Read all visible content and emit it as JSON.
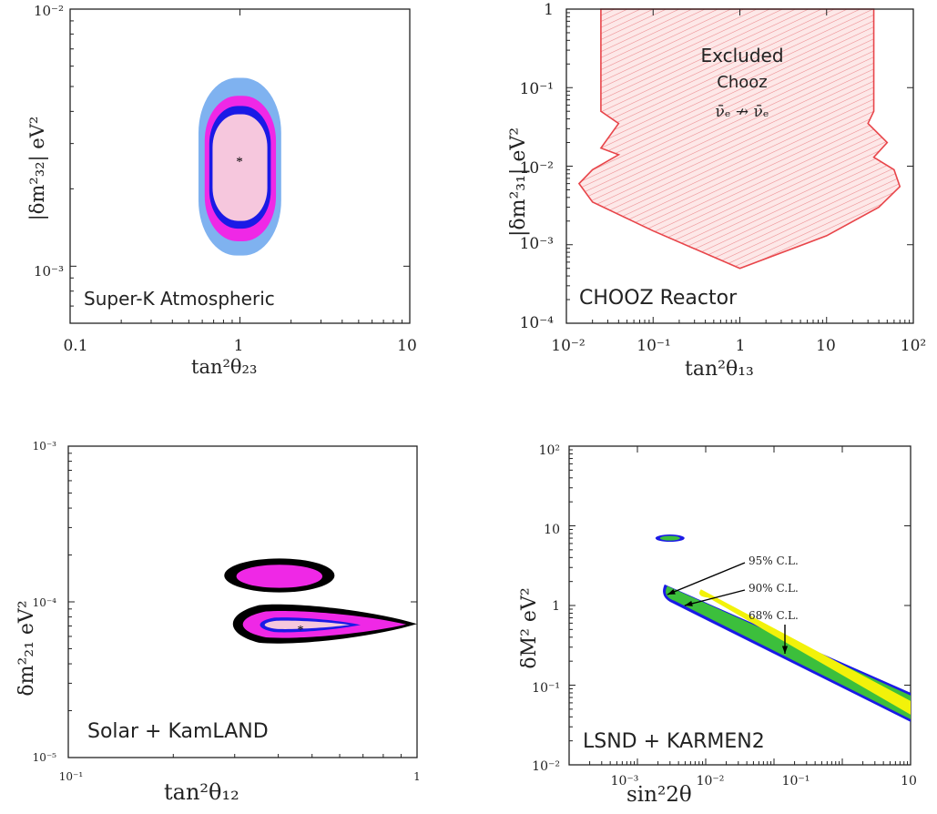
{
  "chart_data": [
    {
      "type": "contour",
      "panel_label": "Super-K Atmospheric",
      "x_scale": "log",
      "y_scale": "log",
      "xlim": [
        0.1,
        10
      ],
      "ylim": [
        0.0006,
        0.01
      ],
      "x_ticks": [
        "0.1",
        "1",
        "10"
      ],
      "y_ticks": [
        "10⁻³",
        "10⁻²"
      ],
      "xlabel": "tan²θ₂₃",
      "ylabel": "|δm²₃₂| eV²",
      "best_fit": {
        "x": 1.0,
        "y": 0.0025
      },
      "regions": [
        {
          "color": "#7fb2f0",
          "x": [
            0.57,
            1.75
          ],
          "y": [
            0.0011,
            0.0054
          ]
        },
        {
          "color": "#ef28e6",
          "x": [
            0.62,
            1.63
          ],
          "y": [
            0.00125,
            0.0046
          ]
        },
        {
          "color": "#1a1ae6",
          "x": [
            0.66,
            1.52
          ],
          "y": [
            0.0014,
            0.0042
          ]
        },
        {
          "color": "#f6c7dd",
          "x": [
            0.69,
            1.45
          ],
          "y": [
            0.0015,
            0.0039
          ]
        }
      ],
      "colors": {
        "outer": "#7fb2f0",
        "mid": "#ef28e6",
        "inner_line": "#1a1ae6",
        "core": "#f6c7dd"
      }
    },
    {
      "type": "exclusion",
      "panel_label": "CHOOZ Reactor",
      "annotation": [
        "Excluded",
        "Chooz",
        "ν̄ₑ ↛ ν̄ₑ"
      ],
      "x_scale": "log",
      "y_scale": "log",
      "xlim": [
        0.01,
        100
      ],
      "ylim": [
        0.0001,
        1
      ],
      "x_ticks": [
        "10⁻²",
        "10⁻¹",
        "1",
        "10",
        "10²"
      ],
      "y_ticks": [
        "10⁻⁴",
        "10⁻³",
        "10⁻²",
        "10⁻¹",
        "1"
      ],
      "xlabel": "tan²θ₁₃",
      "ylabel": "|δm²₃₁| eV²",
      "region_color": "#e8454a",
      "boundary": [
        {
          "x": 0.025,
          "y": 1
        },
        {
          "x": 0.025,
          "y": 0.05
        },
        {
          "x": 0.04,
          "y": 0.035
        },
        {
          "x": 0.025,
          "y": 0.017
        },
        {
          "x": 0.04,
          "y": 0.014
        },
        {
          "x": 0.02,
          "y": 0.009
        },
        {
          "x": 0.014,
          "y": 0.006
        },
        {
          "x": 0.02,
          "y": 0.0035
        },
        {
          "x": 0.1,
          "y": 0.0015
        },
        {
          "x": 1.0,
          "y": 0.0005
        },
        {
          "x": 10,
          "y": 0.0013
        },
        {
          "x": 40,
          "y": 0.003
        },
        {
          "x": 70,
          "y": 0.0055
        },
        {
          "x": 60,
          "y": 0.009
        },
        {
          "x": 35,
          "y": 0.013
        },
        {
          "x": 50,
          "y": 0.02
        },
        {
          "x": 30,
          "y": 0.035
        },
        {
          "x": 35,
          "y": 0.05
        },
        {
          "x": 35,
          "y": 1
        }
      ]
    },
    {
      "type": "contour",
      "panel_label": "Solar + KamLAND",
      "x_scale": "log",
      "y_scale": "log",
      "xlim": [
        0.1,
        1
      ],
      "ylim": [
        1e-05,
        0.001
      ],
      "x_ticks": [
        "10⁻¹",
        "1"
      ],
      "y_ticks": [
        "10⁻⁵",
        "10⁻⁴",
        "10⁻³"
      ],
      "xlabel": "tan²θ₁₂",
      "ylabel": "δm²₂₁ eV²",
      "best_fit": {
        "x": 0.42,
        "y": 7.1e-05
      },
      "upper_island": {
        "x": [
          0.28,
          0.58
        ],
        "y": [
          0.000115,
          0.00019
        ]
      },
      "lower_island": {
        "x": [
          0.28,
          1.0
        ],
        "y": [
          5.2e-05,
          0.0001
        ]
      },
      "colors": {
        "outer": "#000000",
        "mid": "#ef28e6",
        "inner_line": "#1a1ae6",
        "core": "#f6c7dd"
      }
    },
    {
      "type": "band",
      "panel_label": "LSND + KARMEN2",
      "x_scale": "log",
      "y_scale": "log",
      "xlim": [
        0.0001,
        10
      ],
      "ylim": [
        0.01,
        100
      ],
      "x_ticks": [
        "10⁻³",
        "10⁻²",
        "10⁻¹",
        "10"
      ],
      "y_ticks": [
        "10⁻²",
        "10⁻¹",
        "1",
        "10",
        "10²"
      ],
      "xlabel": "sin²2θ",
      "ylabel": "δM² eV²",
      "band_start": {
        "x": 0.0025,
        "y": 1.3
      },
      "band_end": {
        "x": 10,
        "y": 0.045
      },
      "island": {
        "x": 0.003,
        "y": 7.0
      },
      "cl_labels": [
        "95% C.L.",
        "90% C.L.",
        "68% C.L."
      ],
      "colors": {
        "95": "#1a1ae6",
        "90": "#3cbf3c",
        "68": "#f2f20a"
      }
    }
  ]
}
